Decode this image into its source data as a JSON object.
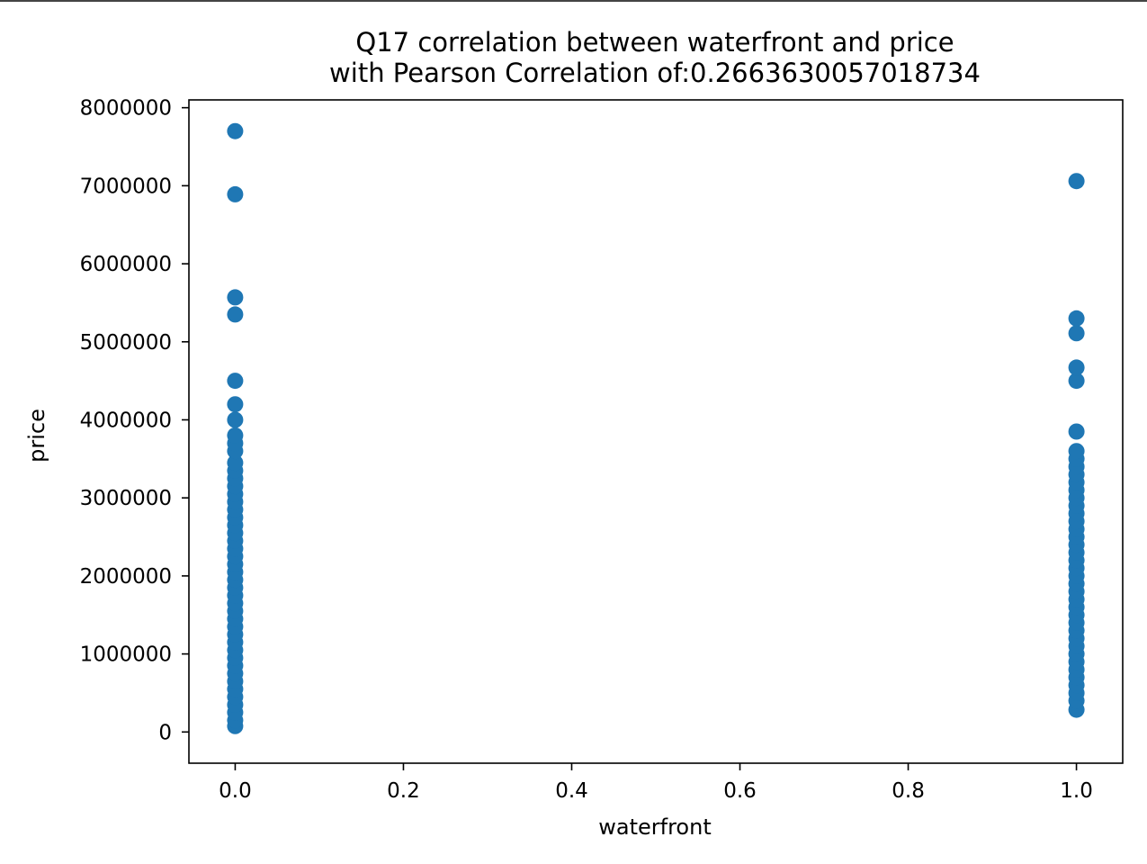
{
  "chart_data": {
    "type": "scatter",
    "title": "Q17 correlation between waterfront and price",
    "subtitle": "with Pearson Correlation of:0.2663630057018734",
    "xlabel": "waterfront",
    "ylabel": "price",
    "xlim": [
      -0.055,
      1.055
    ],
    "ylim": [
      -400000,
      8100000
    ],
    "x_ticks": [
      0.0,
      0.2,
      0.4,
      0.6,
      0.8,
      1.0
    ],
    "x_tick_labels": [
      "0.0",
      "0.2",
      "0.4",
      "0.6",
      "0.8",
      "1.0"
    ],
    "y_ticks": [
      0,
      1000000,
      2000000,
      3000000,
      4000000,
      5000000,
      6000000,
      7000000,
      8000000
    ],
    "y_tick_labels": [
      "0",
      "1000000",
      "2000000",
      "3000000",
      "4000000",
      "5000000",
      "6000000",
      "7000000",
      "8000000"
    ],
    "grid": false,
    "marker_color": "#1f77b4",
    "series": [
      {
        "points": [
          [
            0,
            75000
          ],
          [
            0,
            150000
          ],
          [
            0,
            250000
          ],
          [
            0,
            350000
          ],
          [
            0,
            450000
          ],
          [
            0,
            550000
          ],
          [
            0,
            650000
          ],
          [
            0,
            750000
          ],
          [
            0,
            850000
          ],
          [
            0,
            950000
          ],
          [
            0,
            1050000
          ],
          [
            0,
            1150000
          ],
          [
            0,
            1250000
          ],
          [
            0,
            1350000
          ],
          [
            0,
            1450000
          ],
          [
            0,
            1550000
          ],
          [
            0,
            1650000
          ],
          [
            0,
            1750000
          ],
          [
            0,
            1850000
          ],
          [
            0,
            1950000
          ],
          [
            0,
            2050000
          ],
          [
            0,
            2150000
          ],
          [
            0,
            2250000
          ],
          [
            0,
            2350000
          ],
          [
            0,
            2450000
          ],
          [
            0,
            2550000
          ],
          [
            0,
            2650000
          ],
          [
            0,
            2750000
          ],
          [
            0,
            2850000
          ],
          [
            0,
            2950000
          ],
          [
            0,
            3050000
          ],
          [
            0,
            3150000
          ],
          [
            0,
            3250000
          ],
          [
            0,
            3350000
          ],
          [
            0,
            3450000
          ],
          [
            0,
            3600000
          ],
          [
            0,
            3700000
          ],
          [
            0,
            3800000
          ],
          [
            0,
            4000000
          ],
          [
            0,
            4200000
          ],
          [
            0,
            4500000
          ],
          [
            0,
            5350000
          ],
          [
            0,
            5570000
          ],
          [
            0,
            6890000
          ],
          [
            0,
            7700000
          ],
          [
            1,
            285000
          ],
          [
            1,
            400000
          ],
          [
            1,
            500000
          ],
          [
            1,
            600000
          ],
          [
            1,
            700000
          ],
          [
            1,
            800000
          ],
          [
            1,
            900000
          ],
          [
            1,
            1000000
          ],
          [
            1,
            1100000
          ],
          [
            1,
            1200000
          ],
          [
            1,
            1300000
          ],
          [
            1,
            1400000
          ],
          [
            1,
            1500000
          ],
          [
            1,
            1600000
          ],
          [
            1,
            1700000
          ],
          [
            1,
            1800000
          ],
          [
            1,
            1900000
          ],
          [
            1,
            2000000
          ],
          [
            1,
            2100000
          ],
          [
            1,
            2200000
          ],
          [
            1,
            2300000
          ],
          [
            1,
            2400000
          ],
          [
            1,
            2500000
          ],
          [
            1,
            2600000
          ],
          [
            1,
            2700000
          ],
          [
            1,
            2800000
          ],
          [
            1,
            2900000
          ],
          [
            1,
            3000000
          ],
          [
            1,
            3100000
          ],
          [
            1,
            3200000
          ],
          [
            1,
            3300000
          ],
          [
            1,
            3400000
          ],
          [
            1,
            3500000
          ],
          [
            1,
            3600000
          ],
          [
            1,
            3850000
          ],
          [
            1,
            4500000
          ],
          [
            1,
            4670000
          ],
          [
            1,
            5110000
          ],
          [
            1,
            5300000
          ],
          [
            1,
            7060000
          ]
        ]
      }
    ]
  }
}
